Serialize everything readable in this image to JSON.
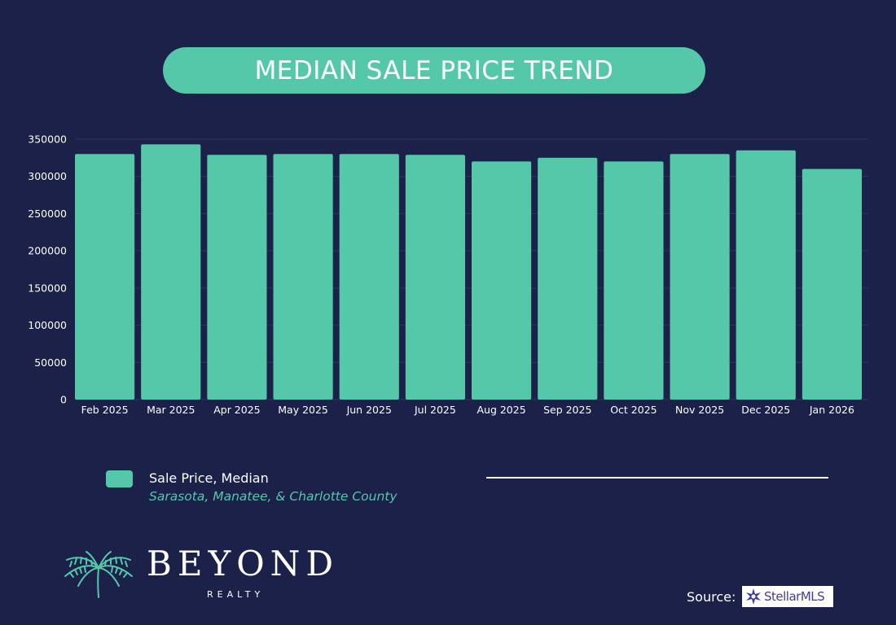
{
  "title": "MEDIAN SALE PRICE TREND",
  "colors": {
    "background": "#1b2149",
    "accent": "#55c8aa",
    "text": "#ffffff"
  },
  "chart_data": {
    "type": "bar",
    "title": "MEDIAN SALE PRICE TREND",
    "categories": [
      "Feb 2025",
      "Mar 2025",
      "Apr 2025",
      "May 2025",
      "Jun 2025",
      "Jul 2025",
      "Aug 2025",
      "Sep 2025",
      "Oct 2025",
      "Nov 2025",
      "Dec 2025",
      "Jan 2026"
    ],
    "series": [
      {
        "name": "Sale Price, Median",
        "values": [
          330000,
          343000,
          329000,
          330000,
          330000,
          329000,
          320000,
          325000,
          320000,
          330000,
          335000,
          310000
        ]
      }
    ],
    "ylim": [
      0,
      350000
    ],
    "yticks": [
      0,
      50000,
      100000,
      150000,
      200000,
      250000,
      300000,
      350000
    ],
    "ytick_labels": [
      "0",
      "50000",
      "100000",
      "150000",
      "200000",
      "250000",
      "300000",
      "350000"
    ],
    "xlabel": "",
    "ylabel": "",
    "grid": true,
    "legend_position": "bottom-left"
  },
  "legend": {
    "label": "Sale Price, Median",
    "subtitle": "Sarasota, Manatee, & Charlotte County"
  },
  "brand": {
    "name": "BEYOND",
    "sub": "REALTY",
    "icon": "palm-tree-icon"
  },
  "source": {
    "label": "Source:",
    "logo_text": "StellarMLS",
    "logo_icon": "star-icon"
  }
}
